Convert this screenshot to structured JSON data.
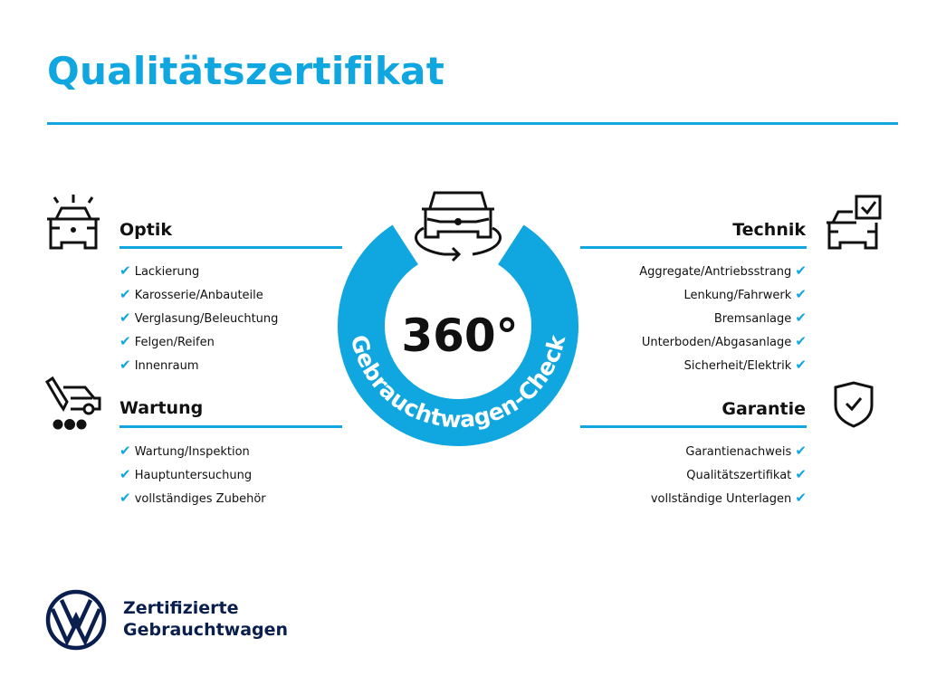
{
  "title": "Qualitätszertifikat",
  "badge": {
    "value": "360°",
    "ring_text": "Gebrauchtwagen-Check",
    "color": "#10a6e0"
  },
  "sections": {
    "optik": {
      "title": "Optik",
      "icon": "car-lights-icon",
      "items": [
        "Lackierung",
        "Karosserie/Anbauteile",
        "Verglasung/Beleuchtung",
        "Felgen/Reifen",
        "Innenraum"
      ]
    },
    "wartung": {
      "title": "Wartung",
      "icon": "car-service-icon",
      "items": [
        "Wartung/Inspektion",
        "Hauptuntersuchung",
        "vollständiges Zubehör"
      ]
    },
    "technik": {
      "title": "Technik",
      "icon": "car-checkbox-icon",
      "items": [
        "Aggregate/Antriebsstrang",
        "Lenkung/Fahrwerk",
        "Bremsanlage",
        "Unterboden/Abgasanlage",
        "Sicherheit/Elektrik"
      ]
    },
    "garantie": {
      "title": "Garantie",
      "icon": "shield-check-icon",
      "items": [
        "Garantienachweis",
        "Qualitätszertifikat",
        "vollständige Unterlagen"
      ]
    }
  },
  "check_mark": "✔",
  "footer": {
    "line1": "Zertifizierte",
    "line2": "Gebrauchtwagen",
    "brand_color": "#0b1f4f"
  }
}
